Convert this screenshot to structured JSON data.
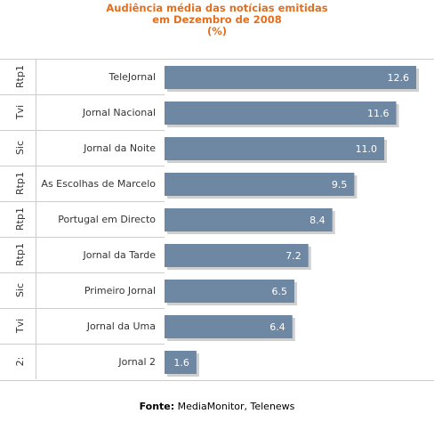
{
  "title_lines": [
    "Audiência média das notícias emitidas",
    "em Dezembro de 2008",
    "(%)"
  ],
  "source_label": "Fonte:",
  "source_text": " MediaMonitor, Telenews",
  "colors": {
    "bar": "#6e87a2",
    "title": "#e06f1f",
    "shadow": "#bbbbbb",
    "value_text": "#ffffff"
  },
  "chart_data": {
    "type": "bar",
    "orientation": "horizontal",
    "title": "Audiência média das notícias emitidas em Dezembro de 2008 (%)",
    "channels": [
      "Rtp1",
      "Tvi",
      "Sic",
      "Rtp1",
      "Rtp1",
      "Rtp1",
      "Sic",
      "Tvi",
      "2:"
    ],
    "categories": [
      "TeleJornal",
      "Jornal Nacional",
      "Jornal da Noite",
      "As Escolhas de Marcelo",
      "Portugal em Directo",
      "Jornal da Tarde",
      "Primeiro Jornal",
      "Jornal da Uma",
      "Jornal 2"
    ],
    "values": [
      12.6,
      11.6,
      11.0,
      9.5,
      8.4,
      7.2,
      6.5,
      6.4,
      1.6
    ],
    "value_labels": [
      "12.6",
      "11.6",
      "11.0",
      "9.5",
      "8.4",
      "7.2",
      "6.5",
      "6.4",
      "1.6"
    ],
    "xlim": [
      0,
      12.6
    ],
    "grid": false,
    "legend": "none"
  }
}
